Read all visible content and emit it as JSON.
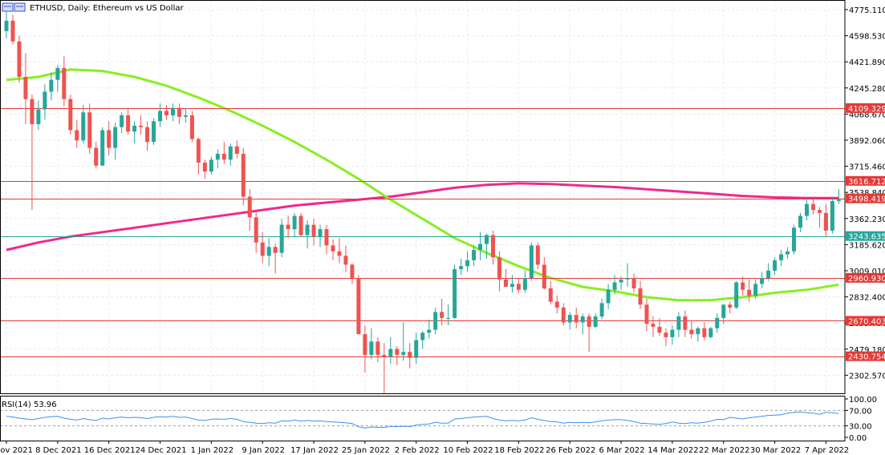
{
  "window": {
    "title": "ETHUSD, Daily:  Ethereum vs US Dollar",
    "icon": "chart-window-icon"
  },
  "colors": {
    "bull": "#26a69a",
    "bear": "#ef5350",
    "ma_fast": "#86f020",
    "ma_slow": "#f0288c",
    "level_line": "#e53935",
    "current_line": "#26a69a",
    "rsi_line": "#3d8ff0",
    "grid": "#e7eaf1",
    "frame": "#000000"
  },
  "chart_data": {
    "type": "candlestick",
    "symbol": "ETHUSD",
    "timeframe": "Daily",
    "description": "Ethereum vs US Dollar",
    "ylim": [
      2180,
      4840
    ],
    "yticks": [
      "4775.110",
      "4598.530",
      "4421.890",
      "4245.280",
      "4068.670",
      "3892.060",
      "3715.460",
      "3538.840",
      "3362.230",
      "3185.620",
      "3009.010",
      "2832.400",
      "2655.790",
      "2479.180",
      "2302.570"
    ],
    "x_labels": [
      {
        "index": 0,
        "label": "30 Nov 2021"
      },
      {
        "index": 8,
        "label": "8 Dec 2021"
      },
      {
        "index": 16,
        "label": "16 Dec 2021"
      },
      {
        "index": 24,
        "label": "24 Dec 2021"
      },
      {
        "index": 32,
        "label": "1 Jan 2022"
      },
      {
        "index": 40,
        "label": "9 Jan 2022"
      },
      {
        "index": 48,
        "label": "17 Jan 2022"
      },
      {
        "index": 56,
        "label": "25 Jan 2022"
      },
      {
        "index": 64,
        "label": "2 Feb 2022"
      },
      {
        "index": 72,
        "label": "10 Feb 2022"
      },
      {
        "index": 80,
        "label": "18 Feb 2022"
      },
      {
        "index": 88,
        "label": "26 Feb 2022"
      },
      {
        "index": 96,
        "label": "6 Mar 2022"
      },
      {
        "index": 104,
        "label": "14 Mar 2022"
      },
      {
        "index": 112,
        "label": "22 Mar 2022"
      },
      {
        "index": 120,
        "label": "30 Mar 2022"
      },
      {
        "index": 128,
        "label": "7 Apr 2022"
      }
    ],
    "candles": [
      [
        4630,
        4760,
        4580,
        4700
      ],
      [
        4700,
        4740,
        4540,
        4560
      ],
      [
        4560,
        4600,
        4280,
        4320
      ],
      [
        4320,
        4480,
        4000,
        4170
      ],
      [
        4170,
        4200,
        3420,
        4000
      ],
      [
        4000,
        4160,
        3960,
        4100
      ],
      [
        4100,
        4270,
        4030,
        4220
      ],
      [
        4220,
        4350,
        4160,
        4300
      ],
      [
        4300,
        4400,
        4220,
        4380
      ],
      [
        4380,
        4460,
        4120,
        4170
      ],
      [
        4170,
        4200,
        3930,
        3960
      ],
      [
        3960,
        4030,
        3840,
        3890
      ],
      [
        3890,
        4130,
        3870,
        4080
      ],
      [
        4080,
        4140,
        3800,
        3840
      ],
      [
        3840,
        3880,
        3700,
        3720
      ],
      [
        3720,
        3980,
        3720,
        3960
      ],
      [
        3960,
        4020,
        3790,
        3840
      ],
      [
        3840,
        4010,
        3760,
        3980
      ],
      [
        3980,
        4080,
        3940,
        4060
      ],
      [
        4060,
        4110,
        3930,
        3950
      ],
      [
        3950,
        4020,
        3870,
        3990
      ],
      [
        3990,
        4060,
        3930,
        3980
      ],
      [
        3980,
        4020,
        3820,
        3880
      ],
      [
        3880,
        4040,
        3860,
        4020
      ],
      [
        4020,
        4140,
        3980,
        4090
      ],
      [
        4090,
        4130,
        4030,
        4060
      ],
      [
        4060,
        4140,
        4020,
        4110
      ],
      [
        4110,
        4140,
        4000,
        4050
      ],
      [
        4050,
        4110,
        4010,
        4060
      ],
      [
        4060,
        4090,
        3880,
        3900
      ],
      [
        3900,
        3910,
        3660,
        3740
      ],
      [
        3740,
        3760,
        3630,
        3680
      ],
      [
        3680,
        3780,
        3660,
        3760
      ],
      [
        3760,
        3830,
        3700,
        3800
      ],
      [
        3800,
        3880,
        3730,
        3760
      ],
      [
        3760,
        3870,
        3720,
        3850
      ],
      [
        3850,
        3890,
        3770,
        3800
      ],
      [
        3800,
        3840,
        3450,
        3510
      ],
      [
        3510,
        3560,
        3280,
        3370
      ],
      [
        3370,
        3410,
        3130,
        3200
      ],
      [
        3200,
        3270,
        3060,
        3110
      ],
      [
        3110,
        3230,
        3040,
        3170
      ],
      [
        3170,
        3190,
        2990,
        3130
      ],
      [
        3130,
        3360,
        3100,
        3320
      ],
      [
        3320,
        3380,
        3230,
        3290
      ],
      [
        3290,
        3400,
        3240,
        3380
      ],
      [
        3380,
        3400,
        3240,
        3250
      ],
      [
        3250,
        3350,
        3160,
        3320
      ],
      [
        3320,
        3360,
        3180,
        3240
      ],
      [
        3240,
        3320,
        3170,
        3290
      ],
      [
        3290,
        3320,
        3120,
        3180
      ],
      [
        3180,
        3220,
        3080,
        3140
      ],
      [
        3140,
        3230,
        3060,
        3110
      ],
      [
        3110,
        3180,
        3000,
        3050
      ],
      [
        3050,
        3060,
        2920,
        2960
      ],
      [
        2960,
        2980,
        2580,
        2580
      ],
      [
        2580,
        2640,
        2320,
        2440
      ],
      [
        2440,
        2620,
        2410,
        2530
      ],
      [
        2530,
        2560,
        2390,
        2440
      ],
      [
        2440,
        2520,
        2180,
        2430
      ],
      [
        2430,
        2560,
        2380,
        2480
      ],
      [
        2480,
        2500,
        2370,
        2440
      ],
      [
        2440,
        2660,
        2400,
        2460
      ],
      [
        2460,
        2520,
        2350,
        2420
      ],
      [
        2420,
        2590,
        2380,
        2540
      ],
      [
        2540,
        2600,
        2480,
        2590
      ],
      [
        2590,
        2680,
        2550,
        2610
      ],
      [
        2610,
        2760,
        2580,
        2730
      ],
      [
        2730,
        2820,
        2640,
        2690
      ],
      [
        2690,
        2780,
        2640,
        2690
      ],
      [
        2690,
        3050,
        2680,
        3020
      ],
      [
        3020,
        3090,
        2980,
        3040
      ],
      [
        3040,
        3140,
        3000,
        3080
      ],
      [
        3080,
        3180,
        3040,
        3150
      ],
      [
        3150,
        3270,
        3080,
        3190
      ],
      [
        3190,
        3260,
        3090,
        3250
      ],
      [
        3250,
        3280,
        3050,
        3100
      ],
      [
        3100,
        3140,
        2870,
        2950
      ],
      [
        2950,
        3020,
        2900,
        2900
      ],
      [
        2900,
        2980,
        2860,
        2920
      ],
      [
        2920,
        2960,
        2860,
        2880
      ],
      [
        2880,
        3010,
        2860,
        2960
      ],
      [
        2960,
        3200,
        2940,
        3180
      ],
      [
        3180,
        3200,
        3020,
        3050
      ],
      [
        3050,
        3100,
        2880,
        2890
      ],
      [
        2890,
        2940,
        2780,
        2800
      ],
      [
        2800,
        2840,
        2720,
        2760
      ],
      [
        2760,
        2790,
        2640,
        2660
      ],
      [
        2660,
        2730,
        2610,
        2710
      ],
      [
        2710,
        2760,
        2620,
        2660
      ],
      [
        2660,
        2720,
        2580,
        2700
      ],
      [
        2700,
        2720,
        2460,
        2630
      ],
      [
        2630,
        2720,
        2620,
        2700
      ],
      [
        2700,
        2820,
        2680,
        2790
      ],
      [
        2790,
        2920,
        2750,
        2880
      ],
      [
        2880,
        2980,
        2850,
        2930
      ],
      [
        2930,
        2970,
        2880,
        2950
      ],
      [
        2950,
        3060,
        2900,
        2960
      ],
      [
        2960,
        2990,
        2860,
        2890
      ],
      [
        2890,
        2940,
        2750,
        2780
      ],
      [
        2780,
        2820,
        2600,
        2650
      ],
      [
        2650,
        2700,
        2560,
        2630
      ],
      [
        2630,
        2690,
        2570,
        2590
      ],
      [
        2590,
        2620,
        2500,
        2560
      ],
      [
        2560,
        2640,
        2510,
        2610
      ],
      [
        2610,
        2730,
        2560,
        2700
      ],
      [
        2700,
        2740,
        2560,
        2610
      ],
      [
        2610,
        2670,
        2550,
        2580
      ],
      [
        2580,
        2630,
        2530,
        2620
      ],
      [
        2620,
        2660,
        2540,
        2560
      ],
      [
        2560,
        2630,
        2550,
        2620
      ],
      [
        2620,
        2720,
        2590,
        2690
      ],
      [
        2690,
        2780,
        2650,
        2780
      ],
      [
        2780,
        2800,
        2720,
        2760
      ],
      [
        2760,
        2940,
        2750,
        2930
      ],
      [
        2930,
        2970,
        2840,
        2880
      ],
      [
        2880,
        2950,
        2800,
        2840
      ],
      [
        2840,
        2950,
        2820,
        2920
      ],
      [
        2920,
        3000,
        2890,
        2960
      ],
      [
        2960,
        3060,
        2940,
        3010
      ],
      [
        3010,
        3100,
        2980,
        3080
      ],
      [
        3080,
        3150,
        3040,
        3120
      ],
      [
        3120,
        3170,
        3090,
        3140
      ],
      [
        3140,
        3320,
        3120,
        3300
      ],
      [
        3300,
        3400,
        3270,
        3380
      ],
      [
        3380,
        3500,
        3350,
        3460
      ],
      [
        3460,
        3510,
        3390,
        3420
      ],
      [
        3420,
        3440,
        3300,
        3400
      ],
      [
        3400,
        3460,
        3240,
        3280
      ],
      [
        3280,
        3500,
        3260,
        3480
      ],
      [
        3480,
        3560,
        3460,
        3490
      ],
      [
        3490,
        3580,
        3420,
        3430
      ],
      [
        3430,
        3520,
        3390,
        3510
      ],
      [
        3510,
        3540,
        3380,
        3440
      ],
      [
        3440,
        3460,
        3170,
        3200
      ],
      [
        3200,
        3270,
        3170,
        3200
      ],
      [
        3200,
        3270,
        3180,
        3250
      ],
      [
        3250,
        3330,
        3190,
        3210
      ],
      [
        3210,
        3270,
        3200,
        3244
      ]
    ],
    "ma_fast_points": [
      [
        0,
        4300
      ],
      [
        5,
        4320
      ],
      [
        10,
        4370
      ],
      [
        15,
        4360
      ],
      [
        20,
        4320
      ],
      [
        25,
        4260
      ],
      [
        30,
        4180
      ],
      [
        35,
        4090
      ],
      [
        40,
        3990
      ],
      [
        45,
        3880
      ],
      [
        50,
        3760
      ],
      [
        55,
        3630
      ],
      [
        60,
        3490
      ],
      [
        65,
        3360
      ],
      [
        70,
        3230
      ],
      [
        75,
        3130
      ],
      [
        80,
        3040
      ],
      [
        85,
        2960
      ],
      [
        90,
        2900
      ],
      [
        95,
        2870
      ],
      [
        100,
        2830
      ],
      [
        105,
        2810
      ],
      [
        110,
        2810
      ],
      [
        115,
        2830
      ],
      [
        120,
        2860
      ],
      [
        125,
        2880
      ],
      [
        130,
        2915
      ]
    ],
    "ma_slow_points": [
      [
        0,
        3150
      ],
      [
        5,
        3200
      ],
      [
        10,
        3240
      ],
      [
        15,
        3270
      ],
      [
        20,
        3300
      ],
      [
        25,
        3330
      ],
      [
        30,
        3360
      ],
      [
        35,
        3390
      ],
      [
        40,
        3420
      ],
      [
        45,
        3450
      ],
      [
        50,
        3470
      ],
      [
        55,
        3490
      ],
      [
        60,
        3510
      ],
      [
        65,
        3540
      ],
      [
        70,
        3570
      ],
      [
        75,
        3590
      ],
      [
        80,
        3600
      ],
      [
        85,
        3595
      ],
      [
        90,
        3585
      ],
      [
        95,
        3575
      ],
      [
        100,
        3560
      ],
      [
        105,
        3545
      ],
      [
        110,
        3530
      ],
      [
        115,
        3515
      ],
      [
        120,
        3505
      ],
      [
        125,
        3500
      ],
      [
        130,
        3500
      ]
    ],
    "levels": [
      {
        "value": 4109.329,
        "label": "4109.329"
      },
      {
        "value": 3616.712,
        "label": "3616.712"
      },
      {
        "value": 3498.419,
        "label": "3498.419"
      },
      {
        "value": 2960.93,
        "label": "2960.930"
      },
      {
        "value": 2670.403,
        "label": "2670.403"
      },
      {
        "value": 2430.754,
        "label": "2430.754"
      }
    ],
    "current": {
      "value": 3243.635,
      "label": "3243.635"
    },
    "rsi": {
      "title": "RSI(14) 53.96",
      "ylim": [
        0,
        100
      ],
      "yticks": [
        "100.00",
        "70.00",
        "30.00",
        "0.00"
      ],
      "levels": [
        70,
        30
      ],
      "values": [
        55,
        53,
        50,
        48,
        46,
        49,
        52,
        54,
        55,
        50,
        47,
        45,
        49,
        46,
        44,
        50,
        48,
        51,
        53,
        51,
        52,
        51,
        49,
        52,
        54,
        53,
        55,
        52,
        53,
        49,
        45,
        44,
        47,
        48,
        47,
        49,
        47,
        41,
        39,
        37,
        36,
        38,
        37,
        43,
        42,
        45,
        42,
        44,
        42,
        43,
        41,
        40,
        39,
        38,
        36,
        28,
        24,
        27,
        26,
        26,
        29,
        28,
        29,
        28,
        32,
        34,
        35,
        39,
        37,
        37,
        48,
        49,
        51,
        53,
        54,
        55,
        49,
        45,
        43,
        44,
        43,
        45,
        51,
        47,
        44,
        41,
        40,
        37,
        39,
        38,
        39,
        38,
        40,
        43,
        45,
        46,
        46,
        44,
        41,
        37,
        36,
        35,
        34,
        36,
        40,
        37,
        36,
        38,
        37,
        39,
        42,
        47,
        46,
        52,
        50,
        48,
        51,
        53,
        55,
        57,
        58,
        59,
        63,
        65,
        66,
        64,
        63,
        60,
        65,
        64,
        62,
        64,
        62,
        51,
        50,
        52,
        50,
        51
      ]
    }
  }
}
